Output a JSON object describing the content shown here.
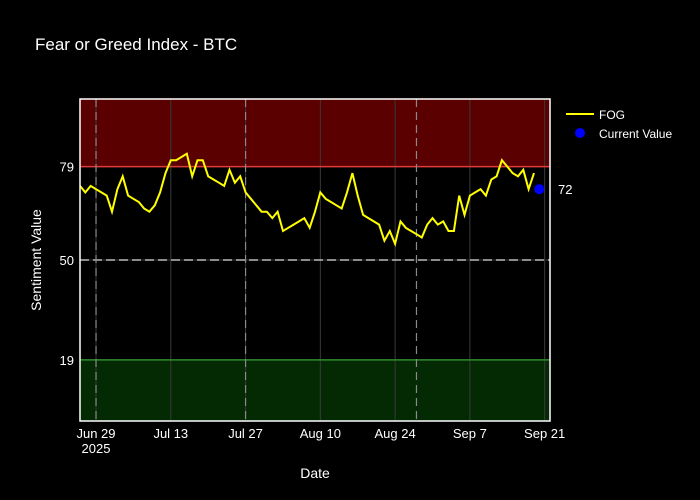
{
  "chart_data": {
    "type": "line",
    "title": "Fear or Greed Index - BTC",
    "xlabel": "Date",
    "ylabel": "Sentiment Value",
    "x_tick_labels": [
      "Jun 29",
      "Jul 13",
      "Jul 27",
      "Aug 10",
      "Aug 24",
      "Sep 7",
      "Sep 21"
    ],
    "x_tick_dates": [
      "2025-06-29",
      "2025-07-13",
      "2025-07-27",
      "2025-08-10",
      "2025-08-24",
      "2025-09-07",
      "2025-09-21"
    ],
    "x_year_label": "2025",
    "y_tick_labels": [
      "19",
      "50",
      "79"
    ],
    "y_tick_values": [
      19,
      50,
      79
    ],
    "ylim": [
      0,
      100
    ],
    "xlim": [
      "2025-06-26",
      "2025-09-22"
    ],
    "grid": true,
    "legend_position": "top-right",
    "zones": [
      {
        "name": "greed",
        "from": 79,
        "to": 100,
        "color": "#5a0000",
        "line_color": "#e23a3a"
      },
      {
        "name": "fear",
        "from": 0,
        "to": 19,
        "color": "#032a03",
        "line_color": "#2e8b2e"
      }
    ],
    "midline": {
      "value": 50,
      "color": "#bbbbbb"
    },
    "vertical_markers": [
      "2025-06-29",
      "2025-07-27",
      "2025-08-28"
    ],
    "series": [
      {
        "name": "FOG",
        "color": "#ffff00",
        "x": [
          "2025-06-26",
          "2025-06-27",
          "2025-06-28",
          "2025-06-29",
          "2025-06-30",
          "2025-07-01",
          "2025-07-02",
          "2025-07-03",
          "2025-07-04",
          "2025-07-05",
          "2025-07-06",
          "2025-07-07",
          "2025-07-08",
          "2025-07-09",
          "2025-07-10",
          "2025-07-11",
          "2025-07-12",
          "2025-07-13",
          "2025-07-14",
          "2025-07-15",
          "2025-07-16",
          "2025-07-17",
          "2025-07-18",
          "2025-07-19",
          "2025-07-20",
          "2025-07-21",
          "2025-07-22",
          "2025-07-23",
          "2025-07-24",
          "2025-07-25",
          "2025-07-26",
          "2025-07-27",
          "2025-07-28",
          "2025-07-29",
          "2025-07-30",
          "2025-07-31",
          "2025-08-01",
          "2025-08-02",
          "2025-08-03",
          "2025-08-04",
          "2025-08-05",
          "2025-08-06",
          "2025-08-07",
          "2025-08-08",
          "2025-08-09",
          "2025-08-10",
          "2025-08-11",
          "2025-08-12",
          "2025-08-13",
          "2025-08-14",
          "2025-08-15",
          "2025-08-16",
          "2025-08-17",
          "2025-08-18",
          "2025-08-19",
          "2025-08-20",
          "2025-08-21",
          "2025-08-22",
          "2025-08-23",
          "2025-08-24",
          "2025-08-25",
          "2025-08-26",
          "2025-08-27",
          "2025-08-28",
          "2025-08-29",
          "2025-08-30",
          "2025-08-31",
          "2025-09-01",
          "2025-09-02",
          "2025-09-03",
          "2025-09-04",
          "2025-09-05",
          "2025-09-06",
          "2025-09-07",
          "2025-09-08",
          "2025-09-09",
          "2025-09-10",
          "2025-09-11",
          "2025-09-12",
          "2025-09-13",
          "2025-09-14",
          "2025-09-15",
          "2025-09-16",
          "2025-09-17",
          "2025-09-18",
          "2025-09-19"
        ],
        "y": [
          73,
          71,
          73,
          72,
          71,
          70,
          65,
          72,
          76,
          70,
          69,
          68,
          66,
          65,
          67,
          71,
          77,
          81,
          81,
          82,
          83,
          76,
          81,
          81,
          76,
          75,
          74,
          73,
          78,
          74,
          76,
          71,
          69,
          67,
          65,
          65,
          63,
          65,
          59,
          60,
          61,
          62,
          63,
          60,
          65,
          71,
          69,
          68,
          67,
          66,
          71,
          77,
          70,
          64,
          63,
          62,
          61,
          56,
          59,
          55,
          62,
          60,
          59,
          58,
          57,
          61,
          63,
          61,
          62,
          59,
          59,
          70,
          64,
          70,
          71,
          72,
          70,
          75,
          76,
          81,
          79,
          77,
          76,
          78,
          72,
          77
        ]
      }
    ],
    "current": {
      "name": "Current Value",
      "date": "2025-09-20",
      "value": 72,
      "label": "72",
      "color": "#0000ff"
    }
  }
}
